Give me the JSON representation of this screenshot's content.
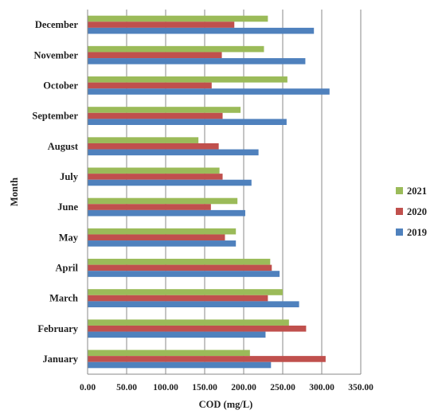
{
  "chart_data": {
    "type": "bar",
    "orientation": "horizontal",
    "categories": [
      "January",
      "February",
      "March",
      "April",
      "May",
      "June",
      "July",
      "August",
      "September",
      "October",
      "November",
      "December"
    ],
    "series": [
      {
        "name": "2019",
        "color": "#4F81BD",
        "values": [
          235,
          228,
          271,
          246,
          190,
          202,
          210,
          219,
          255,
          310,
          279,
          290
        ]
      },
      {
        "name": "2020",
        "color": "#C0504D",
        "values": [
          305,
          280,
          231,
          236,
          176,
          158,
          173,
          168,
          173,
          159,
          172,
          188
        ]
      },
      {
        "name": "2021",
        "color": "#9BBB59",
        "values": [
          208,
          258,
          250,
          234,
          190,
          192,
          169,
          142,
          196,
          256,
          226,
          231
        ]
      }
    ],
    "xlabel": "COD (mg/L)",
    "ylabel": "Month",
    "xlim": [
      0,
      350
    ],
    "xticks": [
      "0.00",
      "50.00",
      "100.00",
      "150.00",
      "200.00",
      "250.00",
      "300.00",
      "350.00"
    ],
    "grid": "vertical",
    "legend_position": "right",
    "legend_order": [
      "2021",
      "2020",
      "2019"
    ]
  }
}
